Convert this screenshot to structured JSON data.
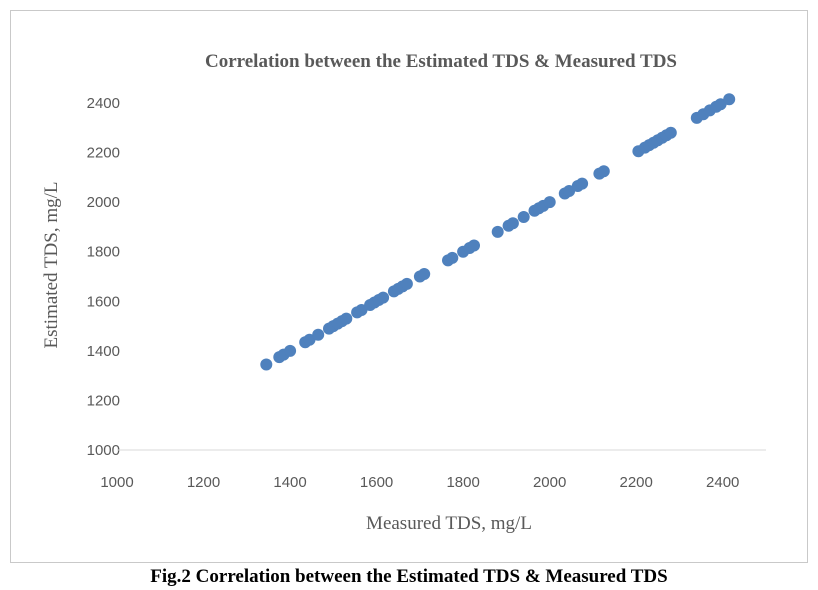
{
  "chart_data": {
    "type": "scatter",
    "title": "Correlation between the Estimated TDS & Measured TDS",
    "xlabel": "Measured TDS, mg/L",
    "ylabel": "Estimated TDS, mg/L",
    "xlim": [
      1000,
      2500
    ],
    "ylim": [
      1000,
      2400
    ],
    "xticks": [
      "1000",
      "1200",
      "1400",
      "1600",
      "1800",
      "2000",
      "2200",
      "2400"
    ],
    "yticks": [
      "1000",
      "1200",
      "1400",
      "1600",
      "1800",
      "2000",
      "2200",
      "2400"
    ],
    "grid": false,
    "legend": "none",
    "marker_color": "#4F81BD",
    "series": [
      {
        "name": "Estimated TDS",
        "points": [
          [
            1345,
            1345
          ],
          [
            1375,
            1375
          ],
          [
            1385,
            1385
          ],
          [
            1400,
            1400
          ],
          [
            1435,
            1435
          ],
          [
            1445,
            1445
          ],
          [
            1465,
            1465
          ],
          [
            1490,
            1490
          ],
          [
            1500,
            1500
          ],
          [
            1510,
            1510
          ],
          [
            1520,
            1520
          ],
          [
            1530,
            1530
          ],
          [
            1555,
            1555
          ],
          [
            1565,
            1565
          ],
          [
            1585,
            1585
          ],
          [
            1595,
            1595
          ],
          [
            1605,
            1605
          ],
          [
            1615,
            1615
          ],
          [
            1640,
            1640
          ],
          [
            1650,
            1650
          ],
          [
            1660,
            1660
          ],
          [
            1670,
            1670
          ],
          [
            1700,
            1700
          ],
          [
            1710,
            1710
          ],
          [
            1765,
            1765
          ],
          [
            1775,
            1775
          ],
          [
            1800,
            1800
          ],
          [
            1815,
            1815
          ],
          [
            1825,
            1825
          ],
          [
            1880,
            1880
          ],
          [
            1905,
            1905
          ],
          [
            1915,
            1915
          ],
          [
            1940,
            1940
          ],
          [
            1965,
            1965
          ],
          [
            1975,
            1975
          ],
          [
            1985,
            1985
          ],
          [
            2000,
            2000
          ],
          [
            2035,
            2035
          ],
          [
            2045,
            2045
          ],
          [
            2065,
            2065
          ],
          [
            2075,
            2075
          ],
          [
            2115,
            2115
          ],
          [
            2125,
            2125
          ],
          [
            2205,
            2205
          ],
          [
            2220,
            2220
          ],
          [
            2230,
            2230
          ],
          [
            2240,
            2240
          ],
          [
            2250,
            2250
          ],
          [
            2260,
            2260
          ],
          [
            2270,
            2270
          ],
          [
            2280,
            2280
          ],
          [
            2340,
            2340
          ],
          [
            2355,
            2355
          ],
          [
            2370,
            2370
          ],
          [
            2385,
            2385
          ],
          [
            2395,
            2395
          ],
          [
            2415,
            2415
          ]
        ]
      }
    ]
  },
  "caption": "Fig.2 Correlation between the Estimated TDS & Measured TDS"
}
